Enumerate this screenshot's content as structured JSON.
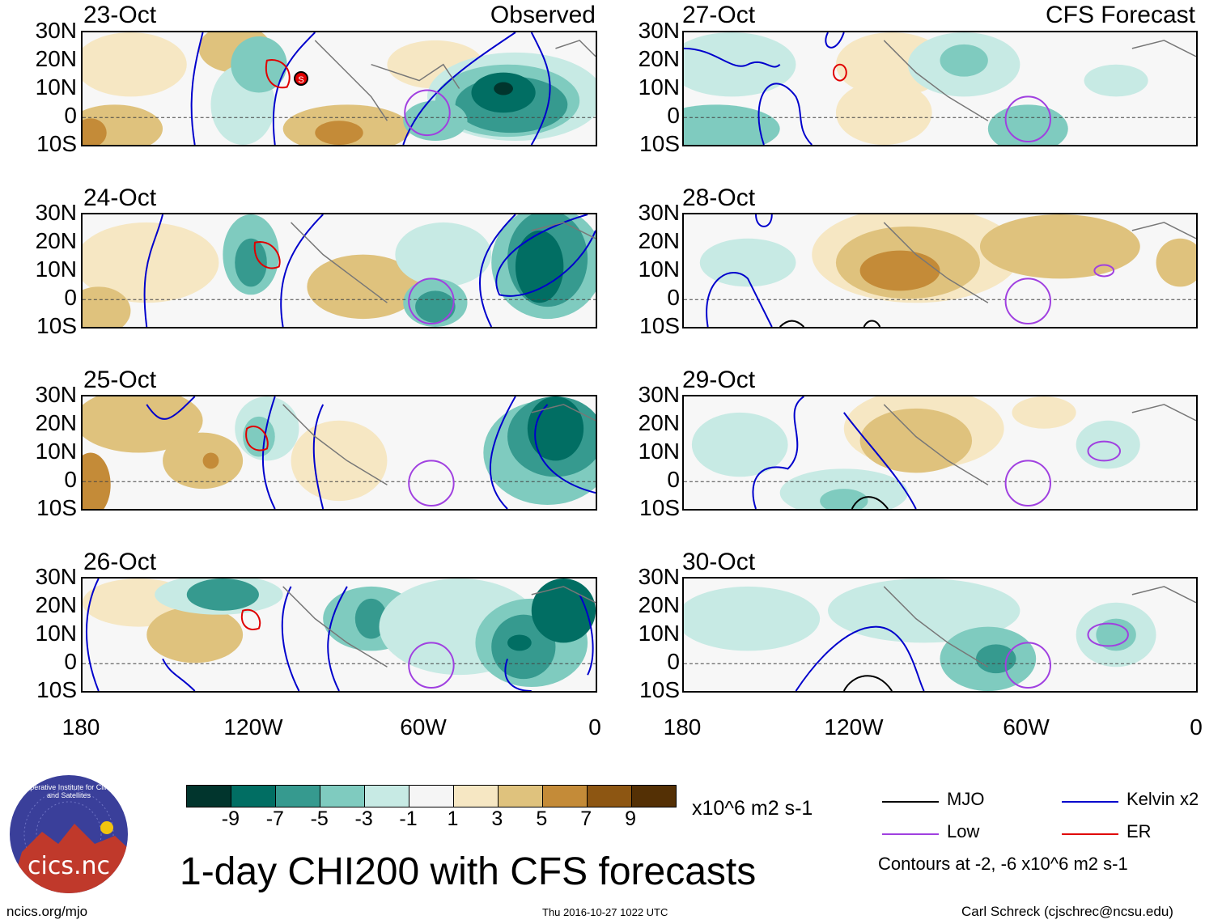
{
  "title": "1-day CHI200 with CFS forecasts",
  "observed_label": "Observed",
  "forecast_label": "CFS Forecast",
  "panels": [
    {
      "date": "23-Oct",
      "column": "observed",
      "marker": "S"
    },
    {
      "date": "24-Oct",
      "column": "observed"
    },
    {
      "date": "25-Oct",
      "column": "observed"
    },
    {
      "date": "26-Oct",
      "column": "observed"
    },
    {
      "date": "27-Oct",
      "column": "forecast"
    },
    {
      "date": "28-Oct",
      "column": "forecast"
    },
    {
      "date": "29-Oct",
      "column": "forecast"
    },
    {
      "date": "30-Oct",
      "column": "forecast"
    }
  ],
  "lat_labels": [
    "30N",
    "20N",
    "10N",
    "0",
    "10S"
  ],
  "lon_labels": [
    "180",
    "120W",
    "60W",
    "0"
  ],
  "colorbar": {
    "colors": [
      "#01352d",
      "#016e63",
      "#369a8f",
      "#7fcbbf",
      "#c7eae4",
      "#f5f5f5",
      "#f6e7c3",
      "#dfc27d",
      "#c48b38",
      "#8d5612",
      "#543005"
    ],
    "labels": [
      "-9",
      "-7",
      "-5",
      "-3",
      "-1",
      "1",
      "3",
      "5",
      "7",
      "9"
    ],
    "units": "x10^6 m2 s-1"
  },
  "legend": {
    "items": [
      {
        "label": "MJO",
        "color": "#000000"
      },
      {
        "label": "Kelvin x2",
        "color": "#0000cc"
      },
      {
        "label": "Low",
        "color": "#a040e0"
      },
      {
        "label": "ER",
        "color": "#e00000"
      }
    ],
    "note": "Contours at -2, -6 x10^6 m2 s-1"
  },
  "logo_text": "cics.nc",
  "logo_ring_text": "Cooperative Institute for Climate and Satellites",
  "footer": {
    "left": "ncics.org/mjo",
    "center": "Thu 2016-10-27 1022 UTC",
    "right": "Carl Schreck (cjschrec@ncsu.edu)"
  }
}
